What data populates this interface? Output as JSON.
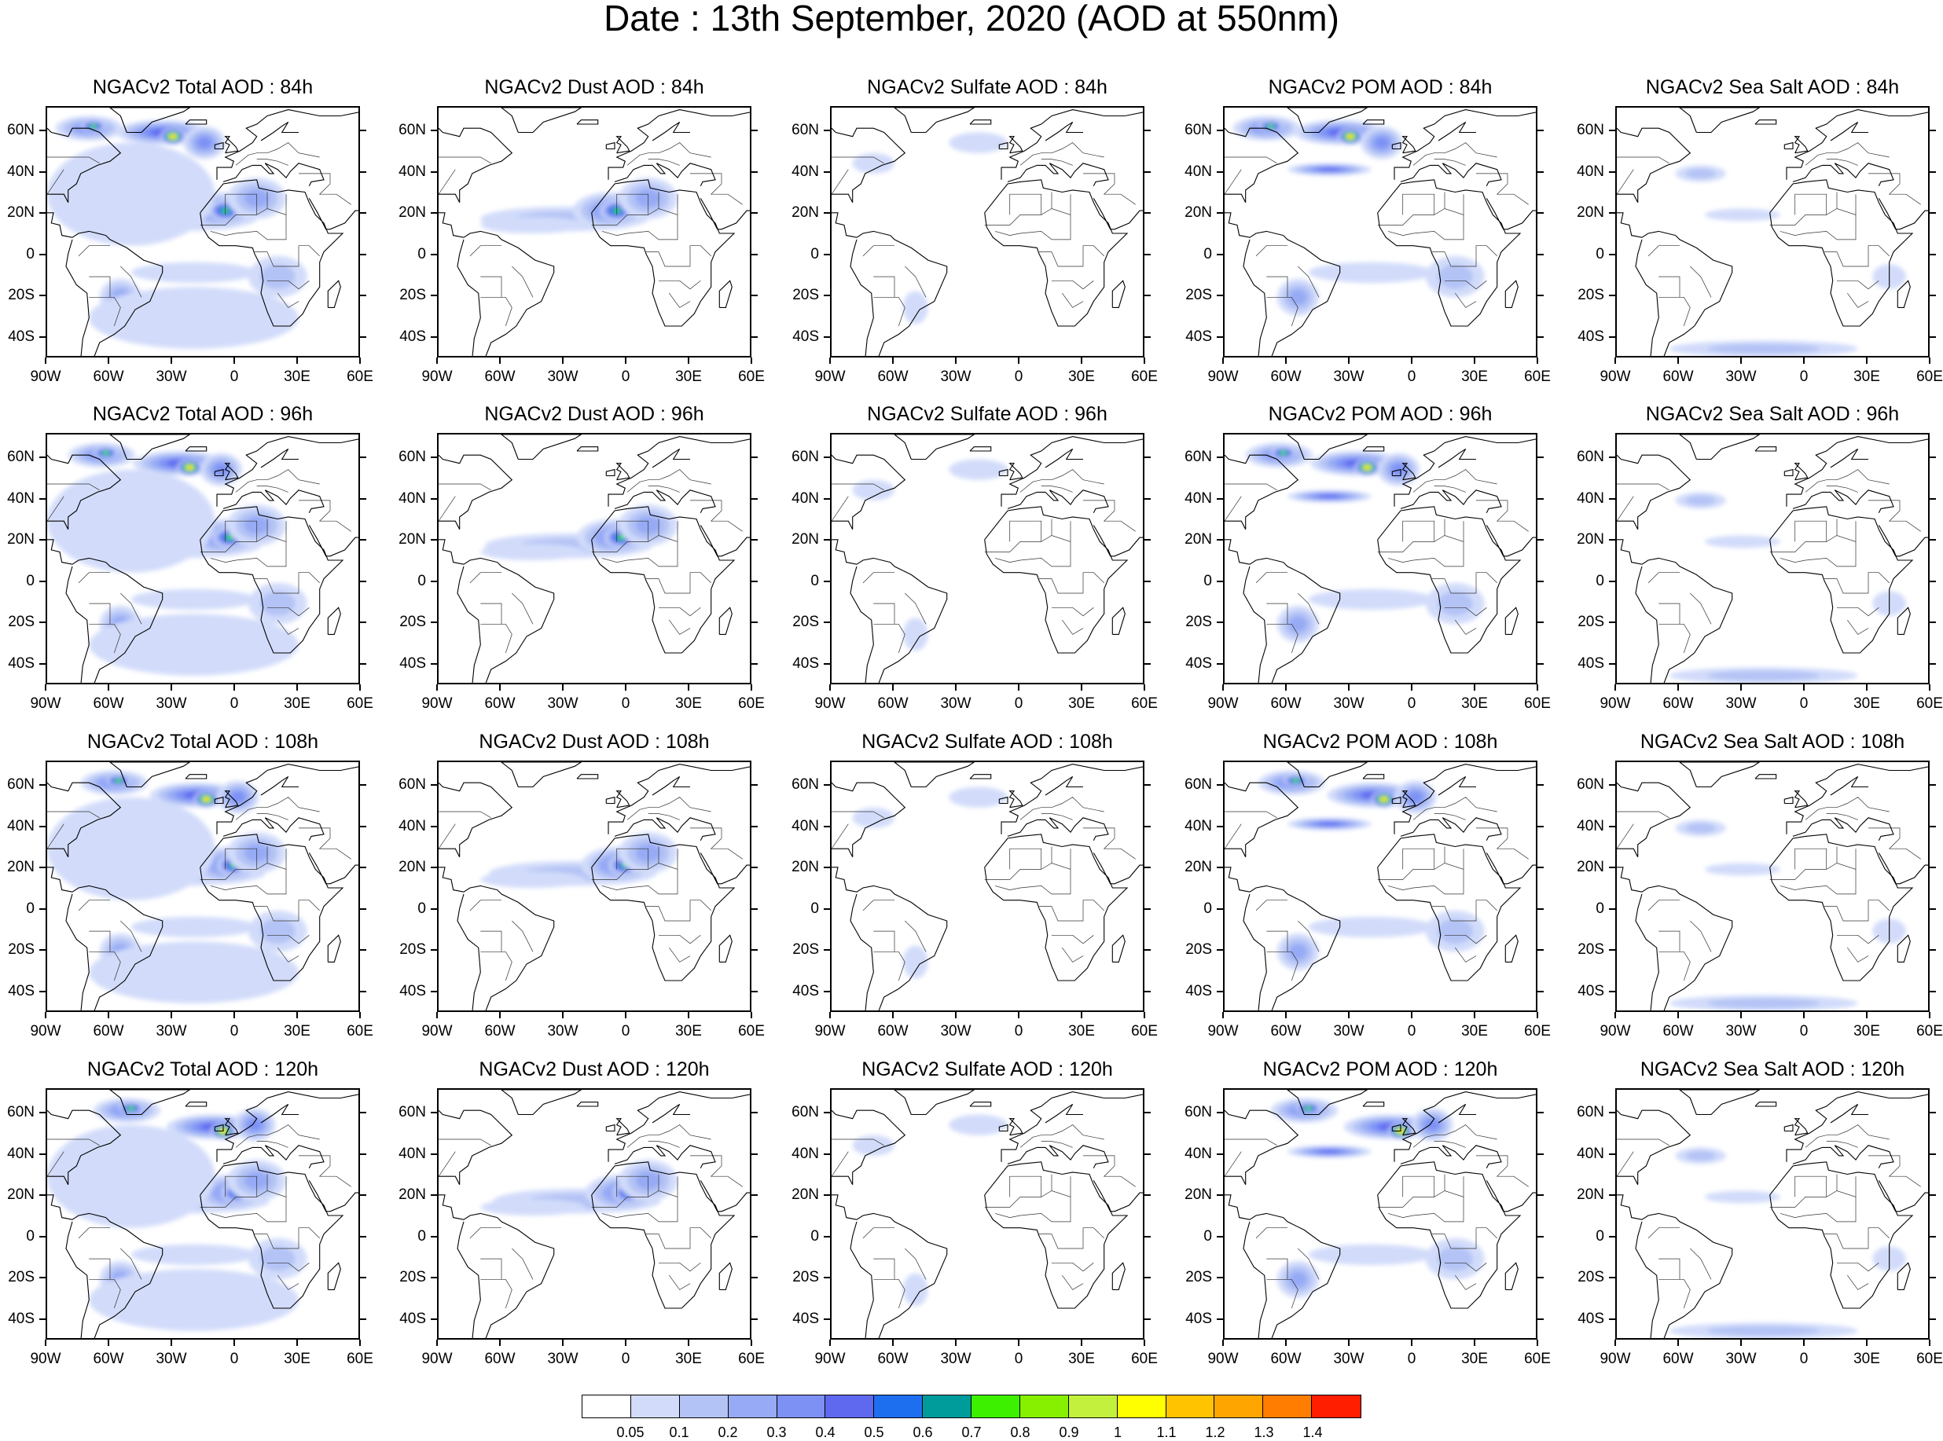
{
  "title": "Date : 13th September, 2020 (AOD at 550nm)",
  "panels": [
    [
      "NGACv2 Total AOD : 84h",
      "NGACv2 Dust AOD : 84h",
      "NGACv2 Sulfate AOD : 84h",
      "NGACv2 POM AOD : 84h",
      "NGACv2 Sea Salt AOD : 84h"
    ],
    [
      "NGACv2 Total AOD : 96h",
      "NGACv2 Dust AOD : 96h",
      "NGACv2 Sulfate AOD : 96h",
      "NGACv2 POM AOD : 96h",
      "NGACv2 Sea Salt AOD : 96h"
    ],
    [
      "NGACv2 Total AOD : 108h",
      "NGACv2 Dust AOD : 108h",
      "NGACv2 Sulfate AOD : 108h",
      "NGACv2 POM AOD : 108h",
      "NGACv2 Sea Salt AOD : 108h"
    ],
    [
      "NGACv2 Total AOD : 120h",
      "NGACv2 Dust AOD : 120h",
      "NGACv2 Sulfate AOD : 120h",
      "NGACv2 POM AOD : 120h",
      "NGACv2 Sea Salt  AOD : 120h"
    ]
  ],
  "lat_labels": [
    "60N",
    "40N",
    "20N",
    "0",
    "20S",
    "40S"
  ],
  "lon_labels": [
    "90W",
    "60W",
    "30W",
    "0",
    "30E",
    "60E"
  ],
  "colorbar": {
    "labels": [
      "0.05",
      "0.1",
      "0.2",
      "0.3",
      "0.4",
      "0.5",
      "0.6",
      "0.7",
      "0.8",
      "0.9",
      "1",
      "1.1",
      "1.2",
      "1.3",
      "1.4"
    ],
    "colors": [
      "#ffffff",
      "#d2dcfa",
      "#b4c3f5",
      "#96aaf5",
      "#7d91f5",
      "#5f69f0",
      "#1e6ef0",
      "#009b9b",
      "#3cf000",
      "#87f000",
      "#c3f03c",
      "#ffff00",
      "#ffc300",
      "#ffa500",
      "#ff7d00",
      "#ff1e00"
    ]
  }
}
